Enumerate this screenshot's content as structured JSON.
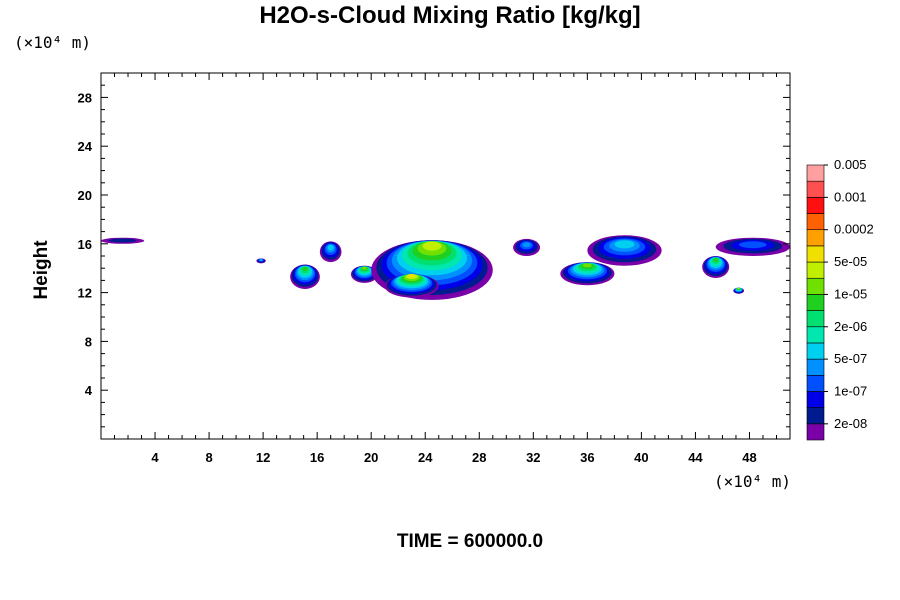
{
  "chart_data": {
    "type": "heatmap",
    "title": "H2O-s-Cloud Mixing Ratio [kg/kg]",
    "xlabel": "",
    "ylabel": "Height",
    "x_unit": "(×10⁴ m)",
    "y_unit": "(×10⁴ m)",
    "xlim": [
      0,
      51
    ],
    "ylim": [
      0,
      30
    ],
    "x_ticks": [
      4,
      8,
      12,
      16,
      20,
      24,
      28,
      32,
      36,
      40,
      44,
      48
    ],
    "y_ticks": [
      4,
      8,
      12,
      16,
      20,
      24,
      28
    ],
    "time_label": "TIME = 600000.0",
    "colorbar": {
      "colors": [
        "#7a00a8",
        "#001b8f",
        "#0000e8",
        "#0050ff",
        "#0090ff",
        "#00d0f0",
        "#00e8b0",
        "#00e070",
        "#20d020",
        "#70e000",
        "#c0f000",
        "#f0e000",
        "#ffa000",
        "#ff6000",
        "#ff1010",
        "#ff5050",
        "#ffa0a0"
      ],
      "labels": [
        "2e-08",
        "1e-07",
        "5e-07",
        "2e-06",
        "1e-05",
        "5e-05",
        "0.0002",
        "0.001",
        "0.005"
      ]
    },
    "cloud_regions": [
      {
        "x": [
          0,
          3.2
        ],
        "y": [
          16.0,
          16.5
        ],
        "level": 1
      },
      {
        "x": [
          11.5,
          12.2
        ],
        "y": [
          14.4,
          14.8
        ],
        "level": 5
      },
      {
        "x": [
          14.0,
          16.2
        ],
        "y": [
          12.3,
          14.3
        ],
        "level": 8
      },
      {
        "x": [
          16.2,
          17.8
        ],
        "y": [
          14.5,
          16.2
        ],
        "level": 5
      },
      {
        "x": [
          18.5,
          20.5
        ],
        "y": [
          12.8,
          14.2
        ],
        "level": 9
      },
      {
        "x": [
          20.0,
          29.0
        ],
        "y": [
          11.4,
          16.3
        ],
        "level": 10
      },
      {
        "x": [
          21.0,
          25.0
        ],
        "y": [
          11.6,
          13.5
        ],
        "level": 11
      },
      {
        "x": [
          30.5,
          32.5
        ],
        "y": [
          15.0,
          16.4
        ],
        "level": 4
      },
      {
        "x": [
          34.0,
          38.0
        ],
        "y": [
          12.6,
          14.5
        ],
        "level": 9
      },
      {
        "x": [
          36.0,
          41.5
        ],
        "y": [
          14.2,
          16.7
        ],
        "level": 5
      },
      {
        "x": [
          44.5,
          46.5
        ],
        "y": [
          13.2,
          15.0
        ],
        "level": 8
      },
      {
        "x": [
          45.5,
          51.0
        ],
        "y": [
          15.0,
          16.5
        ],
        "level": 3
      },
      {
        "x": [
          46.8,
          47.6
        ],
        "y": [
          11.9,
          12.4
        ],
        "level": 10
      }
    ]
  }
}
